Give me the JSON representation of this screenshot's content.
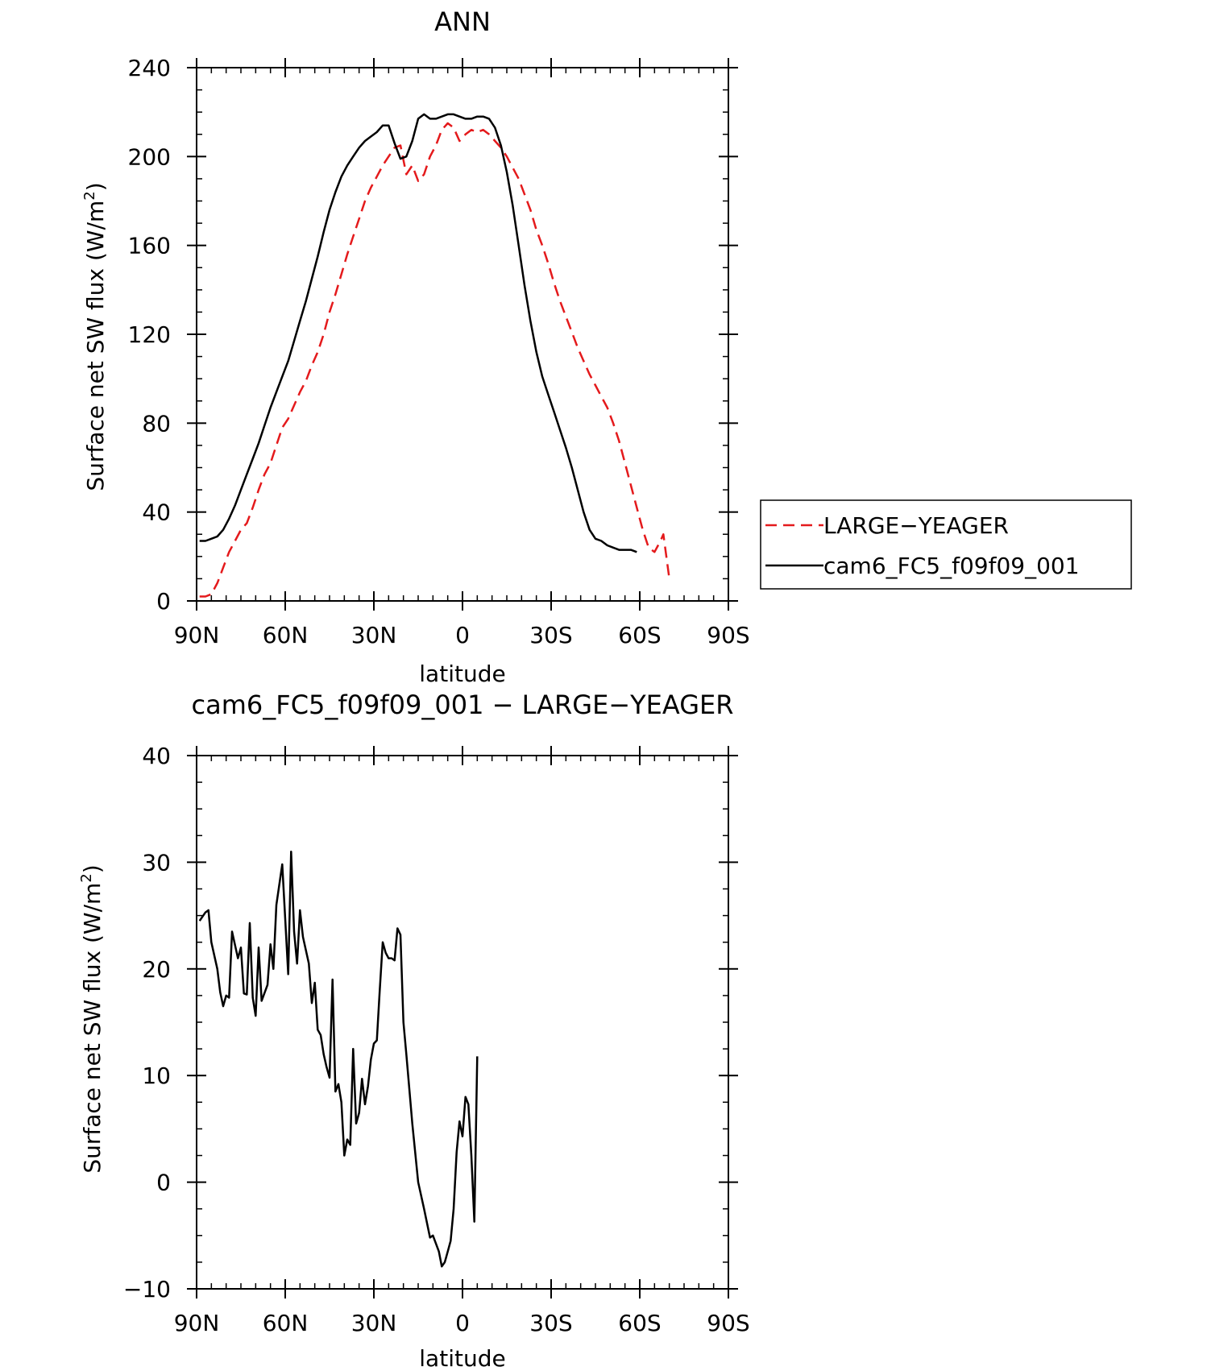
{
  "chart_data": [
    {
      "type": "line",
      "title": "ANN",
      "xlabel": "latitude",
      "ylabel": "Surface net SW flux (W/m²)",
      "ylabel_main": "Surface net SW flux (W/m",
      "ylabel_sup": "2",
      "ylabel_tail": ")",
      "x_axis": "latitude",
      "xlim": [
        90,
        -90
      ],
      "ylim": [
        0,
        240
      ],
      "xticks": [
        90,
        60,
        30,
        0,
        -30,
        -60,
        -90
      ],
      "xtick_labels": [
        "90N",
        "60N",
        "30N",
        "0",
        "30S",
        "60S",
        "90S"
      ],
      "yticks": [
        0,
        40,
        80,
        120,
        160,
        200,
        240
      ],
      "ytick_labels": [
        "0",
        "40",
        "80",
        "120",
        "160",
        "200",
        "240"
      ],
      "legend_position": "right",
      "series": [
        {
          "name": "LARGE-YEAGER",
          "color": "#e41a1c",
          "style": "dashed",
          "points": [
            [
              89,
              2
            ],
            [
              87,
              2
            ],
            [
              85,
              3
            ],
            [
              83,
              8
            ],
            [
              81,
              15
            ],
            [
              79,
              22
            ],
            [
              77,
              27
            ],
            [
              75,
              32
            ],
            [
              73,
              35
            ],
            [
              71,
              42
            ],
            [
              69,
              50
            ],
            [
              67,
              57
            ],
            [
              65,
              62
            ],
            [
              63,
              70
            ],
            [
              61,
              78
            ],
            [
              59,
              82
            ],
            [
              57,
              88
            ],
            [
              55,
              94
            ],
            [
              53,
              99
            ],
            [
              51,
              106
            ],
            [
              49,
              112
            ],
            [
              47,
              120
            ],
            [
              45,
              130
            ],
            [
              43,
              138
            ],
            [
              41,
              147
            ],
            [
              39,
              156
            ],
            [
              37,
              164
            ],
            [
              35,
              172
            ],
            [
              33,
              180
            ],
            [
              31,
              186
            ],
            [
              29,
              191
            ],
            [
              27,
              196
            ],
            [
              25,
              200
            ],
            [
              23,
              204
            ],
            [
              21,
              205
            ],
            [
              19,
              192
            ],
            [
              17,
              196
            ],
            [
              15,
              189
            ],
            [
              13,
              192
            ],
            [
              11,
              200
            ],
            [
              9,
              205
            ],
            [
              7,
              212
            ],
            [
              5,
              215
            ],
            [
              3,
              213
            ],
            [
              1,
              207
            ],
            [
              -1,
              210
            ],
            [
              -3,
              212
            ],
            [
              -5,
              211
            ],
            [
              -7,
              212
            ],
            [
              -9,
              210
            ],
            [
              -11,
              207
            ],
            [
              -13,
              204
            ],
            [
              -15,
              200
            ],
            [
              -17,
              195
            ],
            [
              -19,
              190
            ],
            [
              -21,
              183
            ],
            [
              -23,
              176
            ],
            [
              -25,
              167
            ],
            [
              -27,
              160
            ],
            [
              -29,
              152
            ],
            [
              -31,
              143
            ],
            [
              -33,
              135
            ],
            [
              -35,
              128
            ],
            [
              -37,
              121
            ],
            [
              -39,
              114
            ],
            [
              -41,
              108
            ],
            [
              -43,
              102
            ],
            [
              -45,
              97
            ],
            [
              -47,
              92
            ],
            [
              -49,
              87
            ],
            [
              -51,
              80
            ],
            [
              -53,
              72
            ],
            [
              -55,
              62
            ],
            [
              -57,
              52
            ],
            [
              -59,
              42
            ],
            [
              -61,
              32
            ],
            [
              -63,
              24
            ],
            [
              -65,
              22
            ],
            [
              -67,
              27
            ],
            [
              -68,
              30
            ],
            [
              -69,
              20
            ],
            [
              -70,
              10
            ]
          ]
        },
        {
          "name": "cam6_FC5_f09f09_001",
          "color": "#000000",
          "style": "solid",
          "points": [
            [
              89,
              27
            ],
            [
              87,
              27
            ],
            [
              85,
              28
            ],
            [
              83,
              29
            ],
            [
              81,
              32
            ],
            [
              79,
              37
            ],
            [
              77,
              43
            ],
            [
              75,
              50
            ],
            [
              73,
              57
            ],
            [
              71,
              64
            ],
            [
              69,
              71
            ],
            [
              67,
              79
            ],
            [
              65,
              87
            ],
            [
              63,
              94
            ],
            [
              61,
              101
            ],
            [
              59,
              108
            ],
            [
              57,
              117
            ],
            [
              55,
              126
            ],
            [
              53,
              135
            ],
            [
              51,
              145
            ],
            [
              49,
              155
            ],
            [
              47,
              166
            ],
            [
              45,
              176
            ],
            [
              43,
              184
            ],
            [
              41,
              191
            ],
            [
              39,
              196
            ],
            [
              37,
              200
            ],
            [
              35,
              204
            ],
            [
              33,
              207
            ],
            [
              31,
              209
            ],
            [
              29,
              211
            ],
            [
              27,
              214
            ],
            [
              25,
              214
            ],
            [
              23,
              206
            ],
            [
              21,
              199
            ],
            [
              19,
              200
            ],
            [
              17,
              207
            ],
            [
              15,
              217
            ],
            [
              13,
              219
            ],
            [
              11,
              217
            ],
            [
              9,
              217
            ],
            [
              7,
              218
            ],
            [
              5,
              219
            ],
            [
              3,
              219
            ],
            [
              1,
              218
            ],
            [
              -1,
              217
            ],
            [
              -3,
              217
            ],
            [
              -5,
              218
            ],
            [
              -7,
              218
            ],
            [
              -9,
              217
            ],
            [
              -11,
              213
            ],
            [
              -13,
              205
            ],
            [
              -15,
              193
            ],
            [
              -17,
              178
            ],
            [
              -19,
              160
            ],
            [
              -21,
              142
            ],
            [
              -23,
              126
            ],
            [
              -25,
              112
            ],
            [
              -27,
              101
            ],
            [
              -29,
              93
            ],
            [
              -31,
              85
            ],
            [
              -33,
              77
            ],
            [
              -35,
              69
            ],
            [
              -37,
              60
            ],
            [
              -39,
              50
            ],
            [
              -41,
              40
            ],
            [
              -43,
              32
            ],
            [
              -45,
              28
            ],
            [
              -47,
              27
            ],
            [
              -49,
              25
            ],
            [
              -51,
              24
            ],
            [
              -53,
              23
            ],
            [
              -55,
              23
            ],
            [
              -57,
              23
            ],
            [
              -59,
              22
            ]
          ]
        }
      ]
    },
    {
      "type": "line",
      "title": "cam6_FC5_f09f09_001 − LARGE−YEAGER",
      "xlabel": "latitude",
      "ylabel": "Surface net SW flux (W/m²)",
      "ylabel_main": "Surface net SW flux (W/m",
      "ylabel_sup": "2",
      "ylabel_tail": ")",
      "x_axis": "latitude",
      "xlim": [
        90,
        -90
      ],
      "ylim": [
        -10,
        40
      ],
      "xticks": [
        90,
        60,
        30,
        0,
        -30,
        -60,
        -90
      ],
      "xtick_labels": [
        "90N",
        "60N",
        "30N",
        "0",
        "30S",
        "60S",
        "90S"
      ],
      "yticks": [
        -10,
        0,
        10,
        20,
        30,
        40
      ],
      "ytick_labels": [
        "−10",
        "0",
        "10",
        "20",
        "30",
        "40"
      ],
      "series": [
        {
          "color": "#000000",
          "style": "solid",
          "points": [
            [
              89,
              24.5
            ],
            [
              87,
              25.3
            ],
            [
              86,
              25.5
            ],
            [
              85,
              22.5
            ],
            [
              83,
              20
            ],
            [
              82,
              17.8
            ],
            [
              81,
              16.5
            ],
            [
              80,
              17.5
            ],
            [
              79,
              17.3
            ],
            [
              78,
              23.5
            ],
            [
              76,
              21
            ],
            [
              75,
              22
            ],
            [
              74,
              17.7
            ],
            [
              73,
              17.6
            ],
            [
              72,
              24.3
            ],
            [
              71,
              17.3
            ],
            [
              70,
              15.6
            ],
            [
              69,
              22
            ],
            [
              68,
              17
            ],
            [
              66,
              18.5
            ],
            [
              65,
              22.3
            ],
            [
              64,
              20
            ],
            [
              63,
              26
            ],
            [
              61,
              29.8
            ],
            [
              59,
              19.5
            ],
            [
              58,
              31
            ],
            [
              57,
              23.5
            ],
            [
              56,
              20.5
            ],
            [
              55,
              25.5
            ],
            [
              54,
              23
            ],
            [
              52,
              20.5
            ],
            [
              51,
              16.8
            ],
            [
              50,
              18.7
            ],
            [
              49,
              14.3
            ],
            [
              48,
              13.8
            ],
            [
              47,
              12
            ],
            [
              46,
              10.8
            ],
            [
              45,
              9.8
            ],
            [
              44,
              19
            ],
            [
              43,
              8.5
            ],
            [
              42,
              9.2
            ],
            [
              41,
              7.5
            ],
            [
              40,
              2.5
            ],
            [
              39,
              4
            ],
            [
              38,
              3.5
            ],
            [
              37,
              12.5
            ],
            [
              36,
              5.5
            ],
            [
              35,
              6.5
            ],
            [
              34,
              9.7
            ],
            [
              33,
              7.3
            ],
            [
              32,
              9
            ],
            [
              31,
              11.5
            ],
            [
              30,
              13
            ],
            [
              29,
              13.3
            ],
            [
              28,
              18
            ],
            [
              27,
              22.5
            ],
            [
              26,
              21.5
            ],
            [
              25,
              21
            ],
            [
              24,
              21
            ],
            [
              23,
              20.8
            ],
            [
              22,
              23.8
            ],
            [
              21,
              23.2
            ],
            [
              20,
              15
            ],
            [
              19,
              12
            ],
            [
              17,
              5.5
            ],
            [
              15,
              0
            ],
            [
              13,
              -2.5
            ],
            [
              11,
              -5.2
            ],
            [
              10,
              -5
            ],
            [
              8,
              -6.5
            ],
            [
              7,
              -7.9
            ],
            [
              6,
              -7.5
            ],
            [
              5,
              -6.5
            ],
            [
              4,
              -5.5
            ],
            [
              3,
              -2.5
            ],
            [
              2,
              2.8
            ],
            [
              1,
              5.7
            ],
            [
              0,
              4.3
            ],
            [
              -1,
              8
            ],
            [
              -2,
              7.3
            ],
            [
              -3,
              2.5
            ],
            [
              -4,
              -3.7
            ],
            [
              -5,
              11.8
            ]
          ]
        }
      ]
    }
  ],
  "legend": {
    "items": [
      {
        "label": "LARGE−YEAGER",
        "color": "#e41a1c",
        "style": "dashed"
      },
      {
        "label": "cam6_FC5_f09f09_001",
        "color": "#000000",
        "style": "solid"
      }
    ]
  }
}
